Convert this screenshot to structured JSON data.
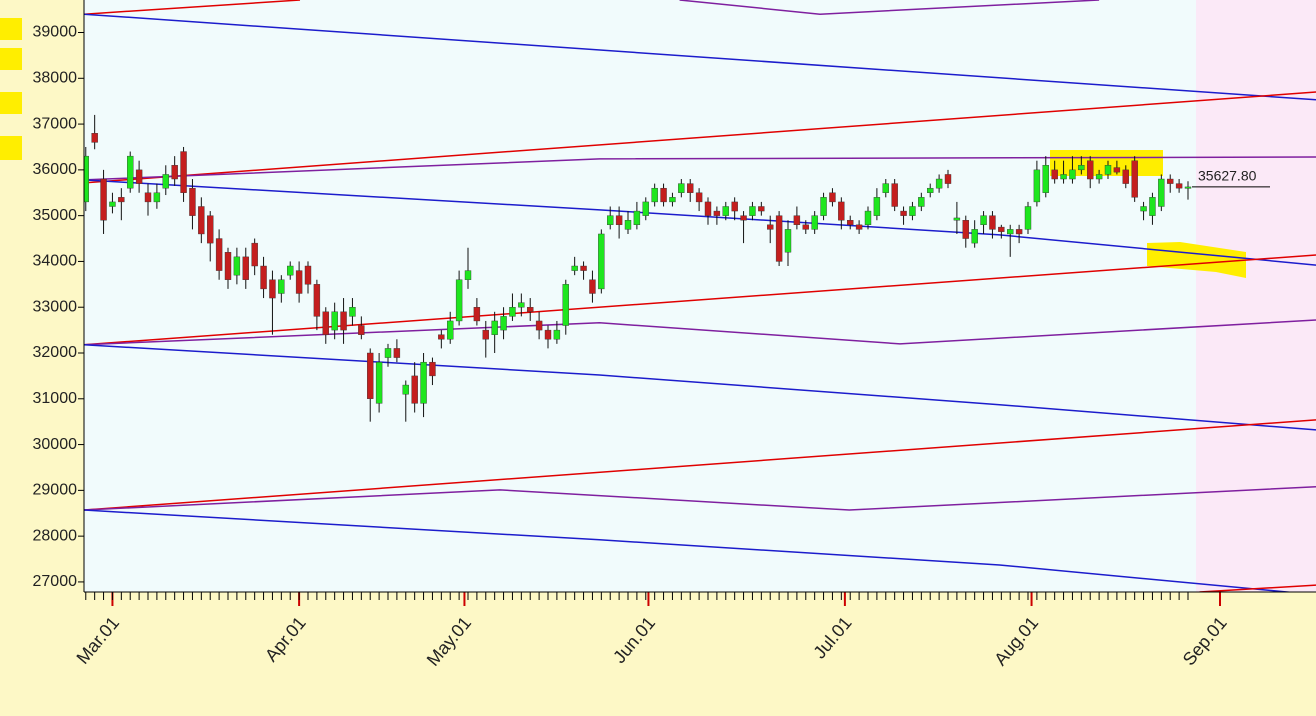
{
  "chart_data": {
    "type": "candlestick",
    "categories": [
      null,
      null,
      null,
      null,
      null,
      null,
      null,
      null,
      null,
      null,
      null,
      null,
      null,
      null,
      null,
      null,
      null,
      null,
      null,
      null,
      null,
      null,
      null,
      null,
      null,
      null,
      null,
      null,
      null,
      null,
      null,
      null,
      null,
      null,
      null,
      null,
      null,
      null,
      null,
      null,
      null,
      null,
      null,
      null,
      null,
      null,
      null,
      null,
      null,
      null,
      null,
      null,
      null,
      null,
      null,
      null,
      null,
      null,
      null,
      null,
      null,
      null,
      null,
      null,
      null,
      null,
      null,
      null,
      null,
      null,
      null,
      null,
      null,
      null,
      null,
      null,
      null,
      null,
      null,
      null,
      null,
      null,
      null,
      null,
      null,
      null,
      null,
      null,
      null,
      null,
      null,
      null,
      null,
      null,
      null,
      null,
      null,
      null,
      null,
      null,
      null,
      null,
      null,
      null,
      null,
      null,
      null,
      null,
      null,
      null,
      null,
      null,
      null,
      null,
      null,
      null,
      null,
      null,
      null,
      null,
      null,
      null,
      null,
      null,
      null
    ],
    "open": [
      35300,
      36800,
      35800,
      35200,
      35400,
      35600,
      36000,
      35500,
      35300,
      35600,
      36100,
      36400,
      35600,
      35200,
      35000,
      34500,
      34200,
      33700,
      34100,
      34400,
      33900,
      33600,
      33300,
      33700,
      33800,
      33900,
      33500,
      32900,
      32500,
      32900,
      32800,
      32600,
      32000,
      30900,
      31900,
      32100,
      31100,
      31500,
      30900,
      31800,
      32400,
      32300,
      32700,
      33600,
      33000,
      32500,
      32400,
      32500,
      32800,
      33000,
      33000,
      32700,
      32500,
      32300,
      32600,
      33800,
      33900,
      33600,
      33400,
      34800,
      35000,
      34700,
      34800,
      35000,
      35300,
      35600,
      35300,
      35500,
      35700,
      35500,
      35300,
      35100,
      35000,
      35300,
      35000,
      35000,
      35200,
      34800,
      35000,
      34200,
      35000,
      34800,
      34700,
      35000,
      35500,
      35300,
      34900,
      34800,
      34800,
      35000,
      35500,
      35700,
      35100,
      35000,
      35200,
      35500,
      35600,
      35900,
      34900,
      34900,
      34400,
      34800,
      35000,
      34750,
      34600,
      34700,
      34700,
      35300,
      35500,
      36000,
      35800,
      35800,
      36000,
      36200,
      35800,
      35900,
      36050,
      36000,
      36200,
      35100,
      35000,
      35200,
      35800,
      35700,
      35600
    ],
    "high": [
      36500,
      37200,
      36000,
      35500,
      35600,
      36400,
      36200,
      35700,
      35700,
      36100,
      36300,
      36500,
      35800,
      35400,
      35100,
      34700,
      34300,
      34300,
      34300,
      34500,
      34100,
      33800,
      33700,
      34000,
      34000,
      34000,
      33600,
      33000,
      33100,
      33200,
      33200,
      32800,
      32100,
      32000,
      32200,
      32300,
      31400,
      31800,
      32000,
      31900,
      32500,
      32900,
      33800,
      34300,
      33200,
      32700,
      32900,
      33000,
      33300,
      33300,
      33200,
      32900,
      32600,
      32700,
      33600,
      34100,
      34000,
      33800,
      34700,
      35200,
      35200,
      35100,
      35300,
      35400,
      35700,
      35700,
      35500,
      35800,
      35800,
      35600,
      35400,
      35200,
      35300,
      35400,
      35100,
      35300,
      35300,
      35000,
      35100,
      34900,
      35200,
      34900,
      35100,
      35500,
      35600,
      35400,
      35000,
      34900,
      35200,
      35600,
      35800,
      35800,
      35200,
      35300,
      35500,
      35700,
      35900,
      36000,
      35300,
      35000,
      34900,
      35100,
      35100,
      34800,
      34800,
      34800,
      35300,
      36200,
      36300,
      36200,
      36200,
      36300,
      36300,
      36300,
      36000,
      36200,
      36200,
      36100,
      36300,
      35300,
      35500,
      35900,
      35900,
      35800,
      35750
    ],
    "low": [
      35100,
      36450,
      34600,
      35050,
      34900,
      35500,
      35500,
      35000,
      35150,
      35450,
      35650,
      35300,
      34700,
      34400,
      34000,
      33600,
      33400,
      33500,
      33400,
      33700,
      33200,
      32400,
      33100,
      33600,
      33100,
      33300,
      32500,
      32200,
      32300,
      32200,
      32600,
      32300,
      30500,
      30700,
      31700,
      31800,
      30500,
      30700,
      30600,
      31300,
      32100,
      32200,
      32600,
      33400,
      32600,
      31900,
      32000,
      32300,
      32700,
      32800,
      32700,
      32300,
      32100,
      32200,
      32400,
      33700,
      33600,
      33100,
      33300,
      34700,
      34500,
      34600,
      34700,
      34900,
      35200,
      35200,
      35200,
      35400,
      35300,
      35100,
      34800,
      34800,
      34900,
      34900,
      34400,
      34900,
      35000,
      34400,
      33900,
      33900,
      34700,
      34600,
      34600,
      34900,
      35200,
      34700,
      34700,
      34600,
      34700,
      34900,
      35400,
      35100,
      34800,
      34900,
      35100,
      35400,
      35500,
      35600,
      34600,
      34300,
      34300,
      34600,
      34500,
      34500,
      34100,
      34400,
      34600,
      35200,
      35400,
      35700,
      35700,
      35700,
      35900,
      35600,
      35700,
      35800,
      35900,
      35600,
      35300,
      34900,
      34800,
      35100,
      35500,
      35500,
      35350
    ],
    "close": [
      36300,
      36600,
      34900,
      35300,
      35300,
      36300,
      35700,
      35300,
      35500,
      35900,
      35800,
      35500,
      35000,
      34600,
      34400,
      33800,
      33600,
      34100,
      33600,
      33900,
      33400,
      33200,
      33600,
      33900,
      33300,
      33500,
      32800,
      32400,
      32900,
      32500,
      33000,
      32400,
      31000,
      31800,
      32100,
      31900,
      31300,
      30900,
      31800,
      31500,
      32300,
      32700,
      33600,
      33800,
      32700,
      32300,
      32700,
      32800,
      33000,
      33100,
      32900,
      32500,
      32300,
      32500,
      33500,
      33900,
      33800,
      33300,
      34600,
      35000,
      34800,
      34900,
      35100,
      35300,
      35600,
      35300,
      35400,
      35700,
      35500,
      35300,
      35000,
      35000,
      35200,
      35100,
      34900,
      35200,
      35100,
      34700,
      34000,
      34700,
      34800,
      34700,
      35000,
      35400,
      35300,
      34900,
      34800,
      34700,
      35100,
      35400,
      35700,
      35200,
      35000,
      35200,
      35400,
      35600,
      35800,
      35700,
      34950,
      34500,
      34700,
      35000,
      34700,
      34650,
      34700,
      34600,
      35200,
      36000,
      36100,
      35800,
      35900,
      36000,
      36100,
      35800,
      35900,
      36100,
      35950,
      35700,
      35400,
      35200,
      35400,
      35800,
      35700,
      35600,
      35627.8
    ],
    "up_color": "#1ee61e",
    "down_color": "#c41e1e",
    "last_price": {
      "value": 35627.8,
      "label": "35627.80"
    },
    "overlays": [
      {
        "color": "#e00000",
        "x": [
          -0.2,
          24.1
        ],
        "values": [
          39400,
          39710
        ]
      },
      {
        "color": "#7f1f9f",
        "x": [
          66.8,
          82.6,
          114
        ],
        "values": [
          39710,
          39400,
          39710
        ]
      },
      {
        "color": "#1c1ccc",
        "x": [
          -0.2,
          138.4
        ],
        "values": [
          39400,
          37530
        ]
      },
      {
        "color": "#e00000",
        "x": [
          -0.2,
          138.4
        ],
        "values": [
          35715,
          37700
        ]
      },
      {
        "color": "#7f1f9f",
        "x": [
          -0.2,
          57.8,
          138.4
        ],
        "values": [
          35780,
          36240,
          36280
        ]
      },
      {
        "color": "#1c1ccc",
        "x": [
          -0.2,
          57.8,
          102.8,
          138.4
        ],
        "values": [
          35780,
          35126,
          34580,
          33920
        ]
      },
      {
        "color": "#e00000",
        "x": [
          -0.2,
          138.4
        ],
        "values": [
          32180,
          34140
        ]
      },
      {
        "color": "#7f1f9f",
        "x": [
          -0.2,
          57.8,
          91.6,
          138.4
        ],
        "values": [
          32180,
          32660,
          32200,
          32720
        ]
      },
      {
        "color": "#1c1ccc",
        "x": [
          -0.2,
          57.8,
          102.8,
          138.4
        ],
        "values": [
          32180,
          31520,
          30870,
          30320
        ]
      },
      {
        "color": "#e00000",
        "x": [
          -0.2,
          138.4
        ],
        "values": [
          28570,
          30540
        ]
      },
      {
        "color": "#7f1f9f",
        "x": [
          -0.2,
          46.6,
          85.9,
          138.4
        ],
        "values": [
          28570,
          29010,
          28570,
          29080
        ]
      },
      {
        "color": "#1c1ccc",
        "x": [
          -0.2,
          57.8,
          102.8,
          138.4
        ],
        "values": [
          28570,
          27920,
          27370,
          26720
        ]
      },
      {
        "color": "#e00000",
        "x": [
          125.3,
          138.4
        ],
        "values": [
          26780,
          26930
        ]
      }
    ],
    "xlim": [
      -0.2,
      138.4
    ],
    "ylim": [
      26780,
      39710
    ],
    "xticks": [
      {
        "value": 3,
        "label": "Mar.01"
      },
      {
        "value": 24,
        "label": "Apr.01"
      },
      {
        "value": 42.6,
        "label": "May.01"
      },
      {
        "value": 63.3,
        "label": "Jun.01"
      },
      {
        "value": 85.4,
        "label": "Jul.01"
      },
      {
        "value": 106.4,
        "label": "Aug.01"
      },
      {
        "value": 127.6,
        "label": "Sep.01"
      }
    ],
    "yticks": [
      27000,
      28000,
      29000,
      30000,
      31000,
      32000,
      33000,
      34000,
      35000,
      36000,
      37000,
      38000,
      39000
    ]
  }
}
